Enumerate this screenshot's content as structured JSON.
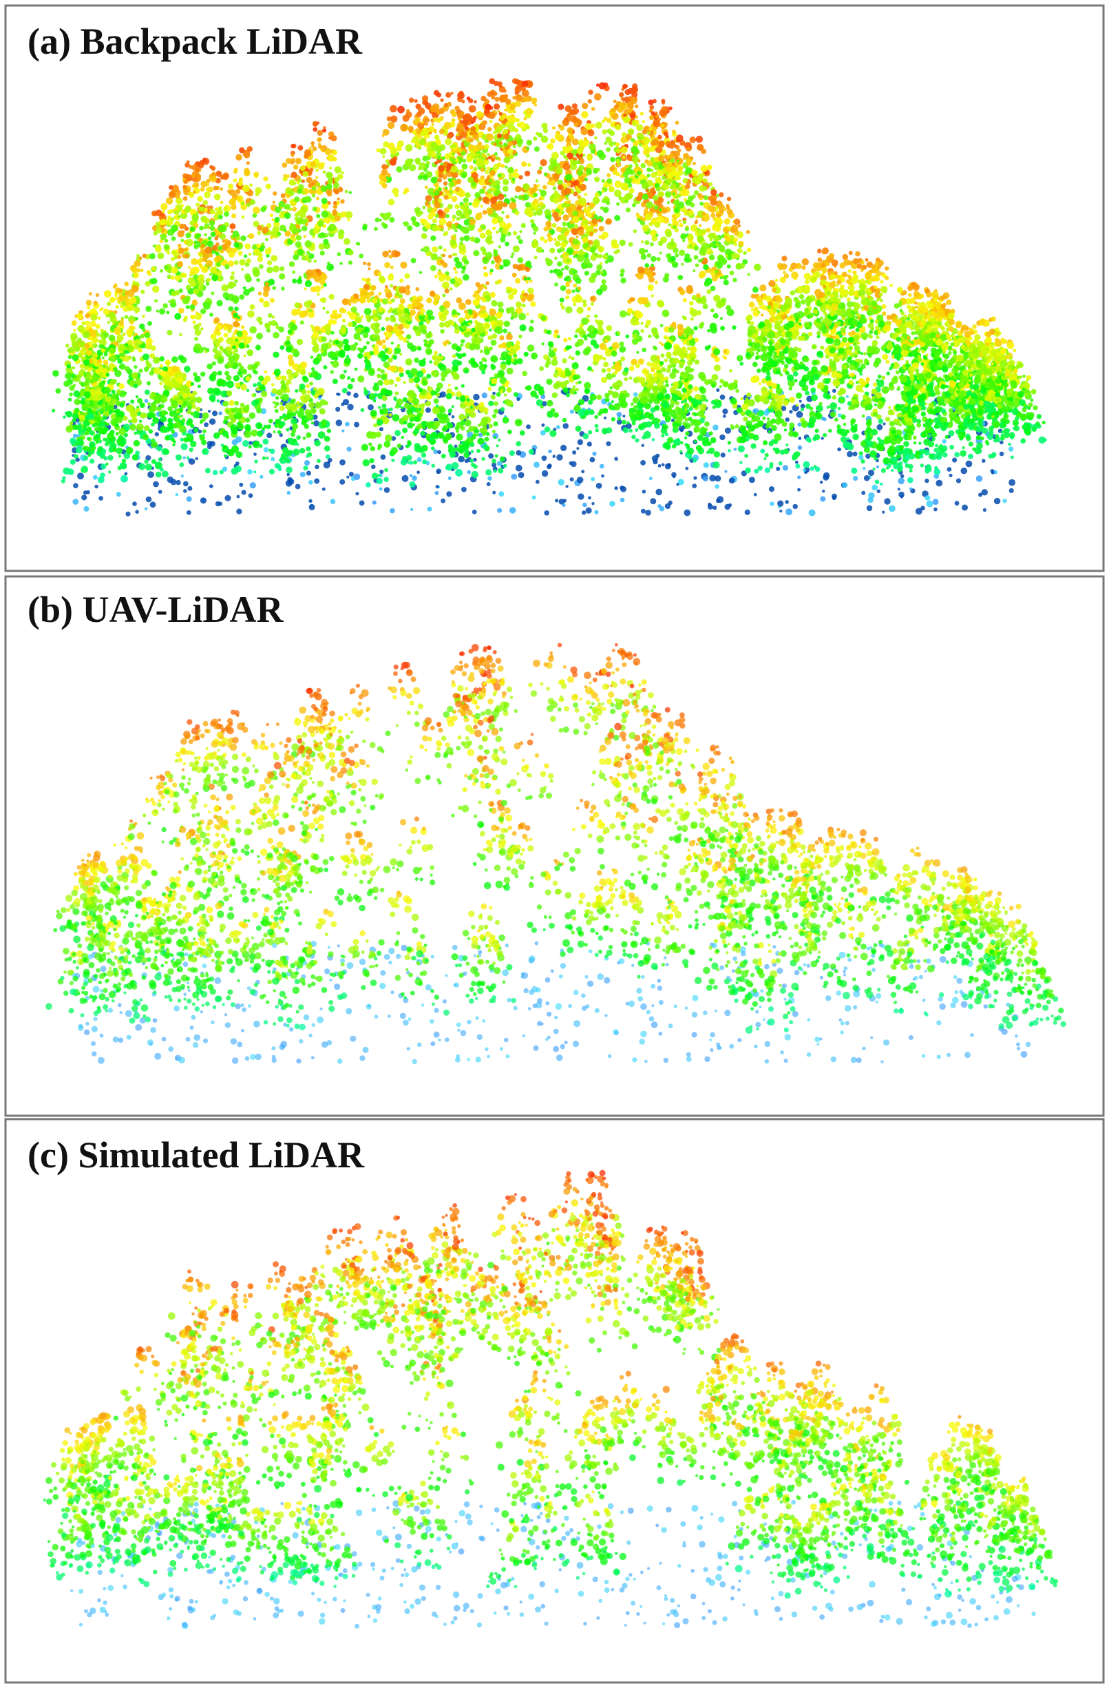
{
  "panels": [
    {
      "label": "(a) Backpack LiDAR"
    },
    {
      "label": "(b) UAV-LiDAR"
    },
    {
      "label": "(c) Simulated LiDAR"
    }
  ]
}
